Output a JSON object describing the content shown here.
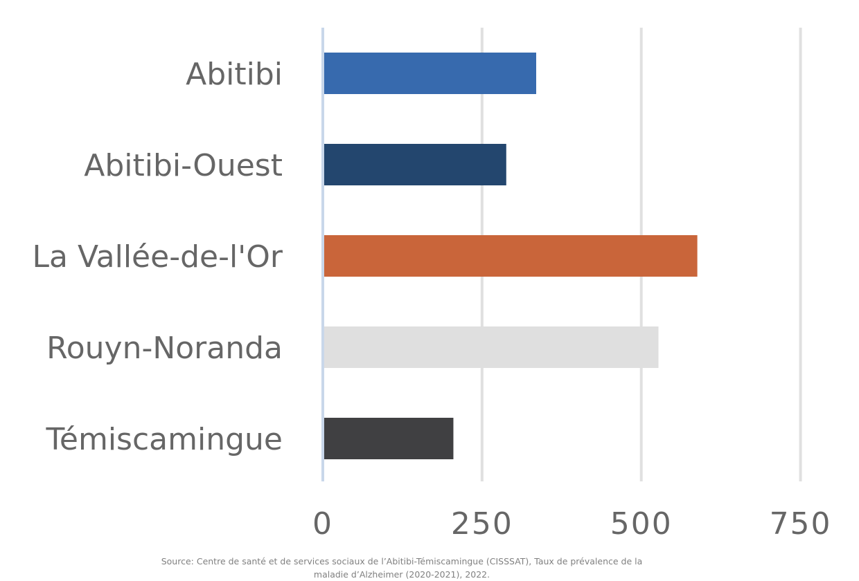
{
  "chart_data": {
    "type": "bar",
    "orientation": "horizontal",
    "title": "",
    "xlabel": "",
    "ylabel": "",
    "categories": [
      "Abitibi",
      "Abitibi-Ouest",
      "La Vallée-de-l'Or",
      "Rouyn-Noranda",
      "Témiscamingue"
    ],
    "values": [
      335,
      288,
      588,
      527,
      205
    ],
    "colors": [
      "#376aae",
      "#23466e",
      "#c9653a",
      "#dfdfdf",
      "#404042"
    ],
    "xlim": [
      0,
      757
    ],
    "xticks": [
      0,
      250,
      500,
      750
    ],
    "grid": true,
    "legend": "none"
  },
  "source": "Source: Centre de santé et de services sociaux de l’Abitibi-Témiscamingue (CISSSAT), Taux de prévalence de la maladie d’Alzheimer (2020-2021), 2022."
}
